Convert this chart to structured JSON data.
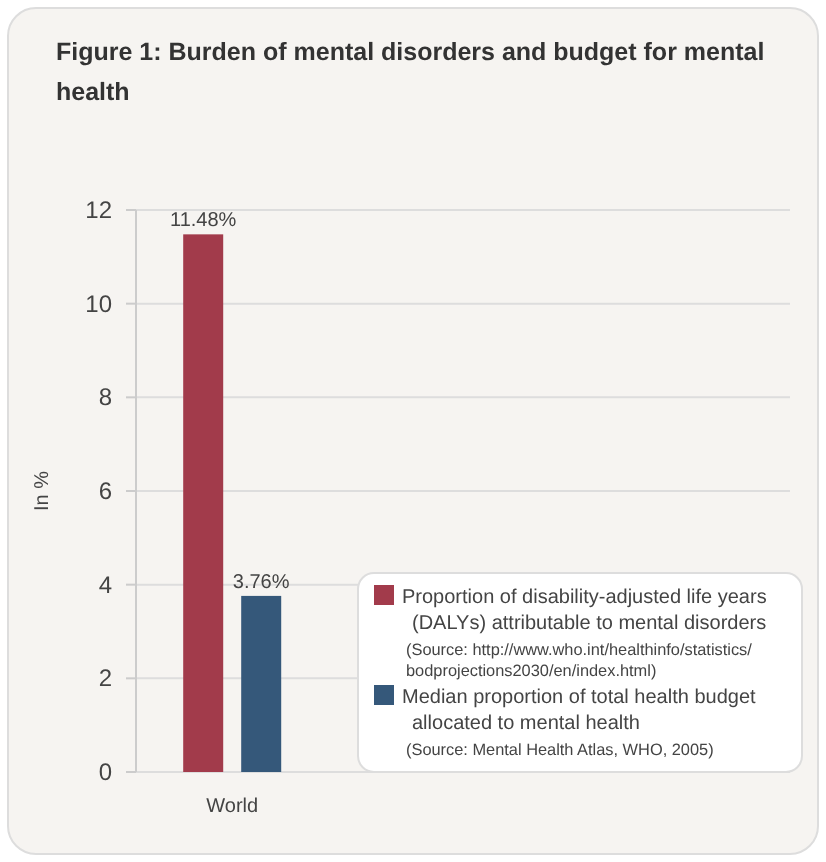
{
  "chart_data": {
    "type": "bar",
    "title": "Figure 1: Burden of mental disorders and budget for mental health",
    "ylabel": "In %",
    "categories": [
      "World"
    ],
    "series": [
      {
        "name": "Proportion of disability-adjusted life years (DALYs) attributable to mental disorders",
        "color": "#a23b4b",
        "values": [
          11.48
        ],
        "value_labels": [
          "11.48%"
        ]
      },
      {
        "name": "Median proportion of total health budget allocated to mental health",
        "color": "#35587a",
        "values": [
          3.76
        ],
        "value_labels": [
          "3.76%"
        ]
      }
    ],
    "annotations": [
      "(Source: http://www.who.int/healthinfo/statistics/bodprojections2030/en/index.html)",
      "(Source: Mental Health Atlas, WHO, 2005)"
    ],
    "ylim": [
      0,
      12
    ],
    "yticks": [
      0,
      2,
      4,
      6,
      8,
      10,
      12
    ],
    "grid": "y",
    "legend": "bottom right"
  }
}
